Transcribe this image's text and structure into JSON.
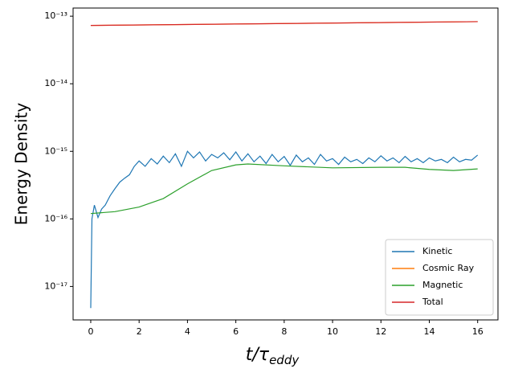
{
  "chart_data": {
    "type": "line",
    "xlabel": "t/τ",
    "xlabel_subscript": "eddy",
    "ylabel": "Energy Density",
    "xlim": [
      -0.73,
      16.84
    ],
    "xticks": [
      0,
      2,
      4,
      6,
      8,
      10,
      12,
      14,
      16
    ],
    "ylim": [
      3.2e-18,
      1.32e-13
    ],
    "yticks": [
      {
        "value": 1e-17,
        "label": "10⁻¹⁷"
      },
      {
        "value": 1e-16,
        "label": "10⁻¹⁶"
      },
      {
        "value": 1e-15,
        "label": "10⁻¹⁵"
      },
      {
        "value": 1e-14,
        "label": "10⁻¹⁴"
      },
      {
        "value": 1e-13,
        "label": "10⁻¹³"
      }
    ],
    "log_y": true,
    "legend": "lower right",
    "series": [
      {
        "name": "Kinetic",
        "color": "#1f77b4",
        "x": [
          0,
          0.05,
          0.15,
          0.3,
          0.45,
          0.6,
          0.8,
          1.0,
          1.2,
          1.4,
          1.6,
          1.8,
          2.0,
          2.25,
          2.5,
          2.75,
          3.0,
          3.25,
          3.5,
          3.75,
          4.0,
          4.25,
          4.5,
          4.75,
          5.0,
          5.25,
          5.5,
          5.75,
          6.0,
          6.25,
          6.5,
          6.75,
          7.0,
          7.25,
          7.5,
          7.75,
          8.0,
          8.25,
          8.5,
          8.75,
          9.0,
          9.25,
          9.5,
          9.75,
          10.0,
          10.25,
          10.5,
          10.75,
          11.0,
          11.25,
          11.5,
          11.75,
          12.0,
          12.25,
          12.5,
          12.75,
          13.0,
          13.25,
          13.5,
          13.75,
          14.0,
          14.25,
          14.5,
          14.75,
          15.0,
          15.25,
          15.5,
          15.75,
          16.0
        ],
        "values": [
          4.8e-18,
          1e-16,
          1.6e-16,
          1.05e-16,
          1.4e-16,
          1.6e-16,
          2.2e-16,
          2.8e-16,
          3.5e-16,
          4e-16,
          4.5e-16,
          6e-16,
          7.2e-16,
          6e-16,
          7.8e-16,
          6.5e-16,
          8.5e-16,
          6.8e-16,
          9.2e-16,
          6e-16,
          1e-15,
          8e-16,
          9.8e-16,
          7.2e-16,
          9e-16,
          8e-16,
          9.5e-16,
          7.5e-16,
          9.8e-16,
          7.2e-16,
          9.2e-16,
          7e-16,
          8.5e-16,
          6.6e-16,
          9e-16,
          7e-16,
          8.4e-16,
          6.2e-16,
          8.8e-16,
          7e-16,
          8e-16,
          6.4e-16,
          9e-16,
          7.2e-16,
          7.8e-16,
          6.4e-16,
          8.2e-16,
          7e-16,
          7.6e-16,
          6.6e-16,
          8e-16,
          7e-16,
          8.6e-16,
          7.2e-16,
          8e-16,
          6.8e-16,
          8.4e-16,
          7e-16,
          7.8e-16,
          6.8e-16,
          8e-16,
          7.2e-16,
          7.6e-16,
          6.8e-16,
          8.2e-16,
          7e-16,
          7.6e-16,
          7.4e-16,
          8.8e-16
        ]
      },
      {
        "name": "Cosmic Ray",
        "color": "#ff7f0e",
        "x": [
          0,
          16
        ],
        "values": [
          7.3e-14,
          8.3e-14
        ]
      },
      {
        "name": "Magnetic",
        "color": "#2ca02c",
        "x": [
          0,
          1,
          2,
          3,
          4,
          5,
          6,
          6.5,
          8,
          10,
          12,
          13,
          14,
          15,
          16
        ],
        "values": [
          1.2e-16,
          1.28e-16,
          1.5e-16,
          2e-16,
          3.3e-16,
          5.2e-16,
          6.3e-16,
          6.5e-16,
          6.1e-16,
          5.7e-16,
          5.8e-16,
          5.8e-16,
          5.4e-16,
          5.2e-16,
          5.5e-16
        ]
      },
      {
        "name": "Total",
        "color": "#d62728",
        "x": [
          0,
          16
        ],
        "values": [
          7.3e-14,
          8.3e-14
        ]
      }
    ]
  }
}
